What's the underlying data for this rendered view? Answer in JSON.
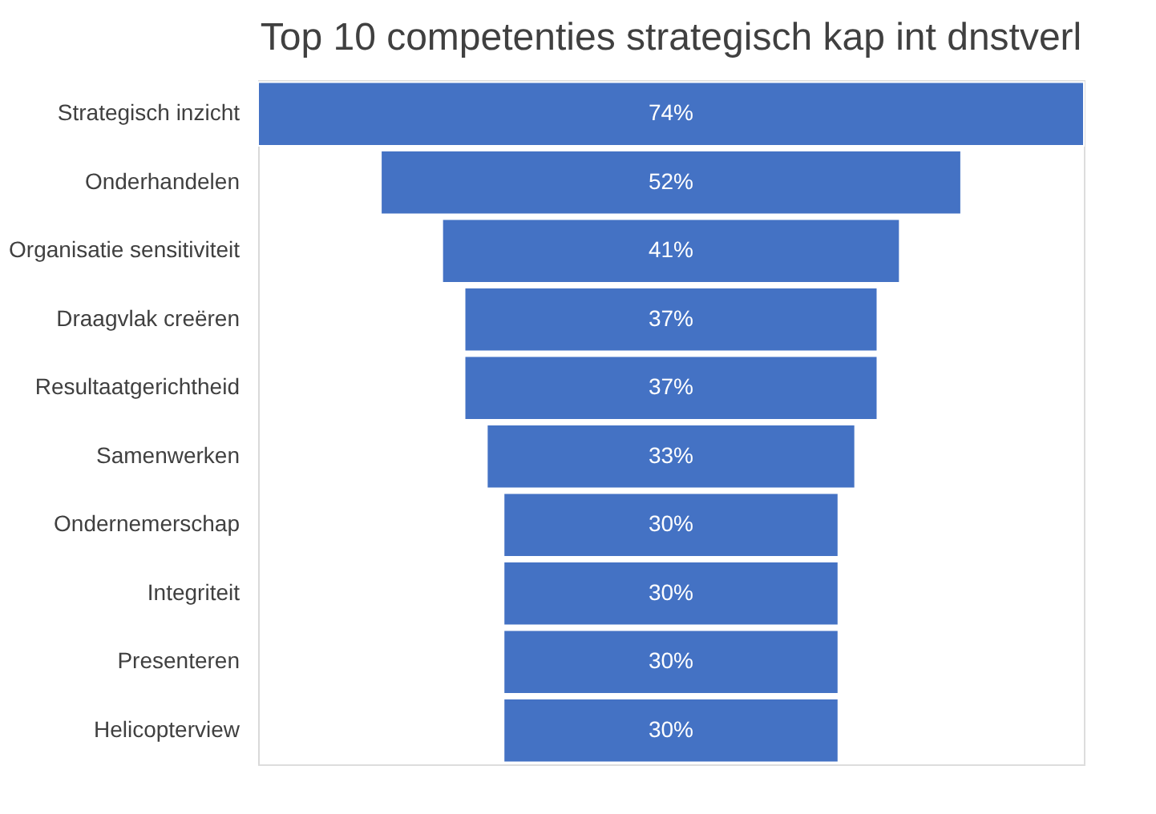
{
  "chart_data": {
    "type": "other",
    "title": "Top 10 competenties strategisch kap int dnstverl",
    "categories": [
      "Strategisch inzicht",
      "Onderhandelen",
      "Organisatie sensitiviteit",
      "Draagvlak creëren",
      "Resultaatgerichtheid",
      "Samenwerken",
      "Ondernemerschap",
      "Integriteit",
      "Presenteren",
      "Helicopterview"
    ],
    "values": [
      74,
      52,
      41,
      37,
      37,
      33,
      30,
      30,
      30,
      30
    ],
    "value_labels": [
      "74%",
      "52%",
      "41%",
      "37%",
      "37%",
      "33%",
      "30%",
      "30%",
      "30%",
      "30%"
    ],
    "color": "#4472c4"
  }
}
